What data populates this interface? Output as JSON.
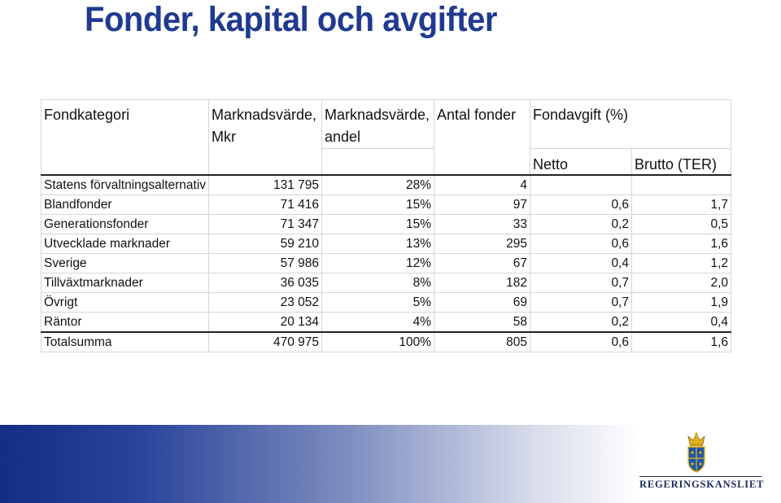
{
  "title": "Fonder, kapital och avgifter",
  "table": {
    "headers": [
      "Fondkategori",
      "Marknadsvärde, Mkr",
      "Marknadsvärde, andel",
      "Antal fonder",
      "Fondavgift (%)"
    ],
    "subheaders": [
      "Netto",
      "Brutto (TER)"
    ],
    "rows": [
      {
        "kategori": "Statens förvaltningsalternativ",
        "mkr": "131 795",
        "andel": "28%",
        "antal": "4",
        "netto": "",
        "brutto": ""
      },
      {
        "kategori": "Blandfonder",
        "mkr": "71 416",
        "andel": "15%",
        "antal": "97",
        "netto": "0,6",
        "brutto": "1,7"
      },
      {
        "kategori": "Generationsfonder",
        "mkr": "71 347",
        "andel": "15%",
        "antal": "33",
        "netto": "0,2",
        "brutto": "0,5"
      },
      {
        "kategori": "Utvecklade marknader",
        "mkr": "59 210",
        "andel": "13%",
        "antal": "295",
        "netto": "0,6",
        "brutto": "1,6"
      },
      {
        "kategori": "Sverige",
        "mkr": "57 986",
        "andel": "12%",
        "antal": "67",
        "netto": "0,4",
        "brutto": "1,2"
      },
      {
        "kategori": "Tillväxtmarknader",
        "mkr": "36 035",
        "andel": "8%",
        "antal": "182",
        "netto": "0,7",
        "brutto": "2,0"
      },
      {
        "kategori": "Övrigt",
        "mkr": "23 052",
        "andel": "5%",
        "antal": "69",
        "netto": "0,7",
        "brutto": "1,9"
      },
      {
        "kategori": "Räntor",
        "mkr": "20 134",
        "andel": "4%",
        "antal": "58",
        "netto": "0,2",
        "brutto": "0,4"
      }
    ],
    "total": {
      "kategori": "Totalsumma",
      "mkr": "470 975",
      "andel": "100%",
      "antal": "805",
      "netto": "0,6",
      "brutto": "1,6"
    }
  },
  "footer": {
    "logo_text": "REGERINGSKANSLIET",
    "band_colors": [
      "#152d82",
      "#7f8fc0",
      "#ffffff"
    ],
    "logo_colors": {
      "crown": "#e3b21e",
      "shield": "#1f56a8"
    }
  }
}
